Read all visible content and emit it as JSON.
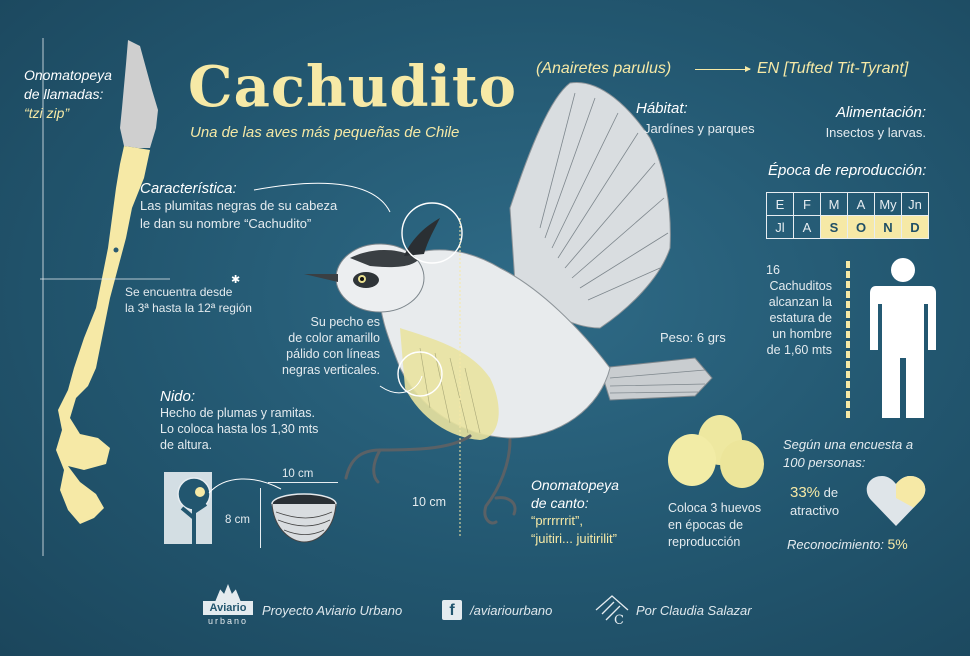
{
  "header": {
    "title": "Cachudito",
    "subtitle": "Una de las aves más pequeñas de Chile",
    "scientific_name": "(Anairetes parulus)",
    "english_name": "EN [Tufted Tit-Tyrant]"
  },
  "calls": {
    "heading_line1": "Onomatopeya",
    "heading_line2": "de llamadas:",
    "sound": "“tzi zip”"
  },
  "distribution": {
    "line1": "Se encuentra desde",
    "line2": "la 3ª hasta la 12ª región"
  },
  "characteristic": {
    "heading": "Característica:",
    "line1": "Las plumitas negras de su cabeza",
    "line2": "le dan su nombre “Cachudito”"
  },
  "chest": {
    "line1": "Su pecho es",
    "line2": "de color amarillo",
    "line3": "pálido con líneas",
    "line4": "negras verticales."
  },
  "nest": {
    "heading": "Nido:",
    "line1": "Hecho de plumas y ramitas.",
    "line2": "Lo coloca hasta los 1,30 mts",
    "line3": "de altura.",
    "width_label": "10 cm",
    "height_label": "8 cm"
  },
  "bird": {
    "height_label": "10 cm",
    "weight": "Peso: 6 grs"
  },
  "song": {
    "heading_line1": "Onomatopeya",
    "heading_line2": "de canto:",
    "line1": "“prrrrrrit”,",
    "line2": "“juitiri... juitirilit”"
  },
  "habitat": {
    "heading": "Hábitat:",
    "text": "Jardínes y parques"
  },
  "food": {
    "heading": "Alimentación:",
    "text": "Insectos y larvas."
  },
  "breeding": {
    "heading": "Época de reproducción:",
    "months_row1": [
      "E",
      "F",
      "M",
      "A",
      "My",
      "Jn"
    ],
    "months_row2": [
      "Jl",
      "A",
      "S",
      "O",
      "N",
      "D"
    ],
    "active_row2": [
      false,
      false,
      true,
      true,
      true,
      true
    ]
  },
  "stature": {
    "count": "16",
    "line1": "Cachuditos",
    "line2": "alcanzan la",
    "line3": "estatura de",
    "line4": "un hombre",
    "line5": "de 1,60 mts"
  },
  "eggs": {
    "line1": "Coloca 3 huevos",
    "line2": "en épocas de",
    "line3": "reproducción"
  },
  "survey": {
    "line1": "Según una encuesta a",
    "line2": "100 personas:",
    "percent_attractive": "33%",
    "attractive_text1": "de",
    "attractive_text2": "atractivo",
    "recognition_label": "Reconocimiento:",
    "recognition_value": "5%",
    "attractive_fraction": 0.33
  },
  "footer": {
    "logo_line1": "Aviario",
    "logo_line2": "urbano",
    "project": "Proyecto Aviario Urbano",
    "facebook": "/aviariourbano",
    "author": "Por Claudia Salazar"
  },
  "colors": {
    "background": "#22566f",
    "accent_yellow": "#f6e9a6",
    "map_north": "#c9c9c9"
  }
}
